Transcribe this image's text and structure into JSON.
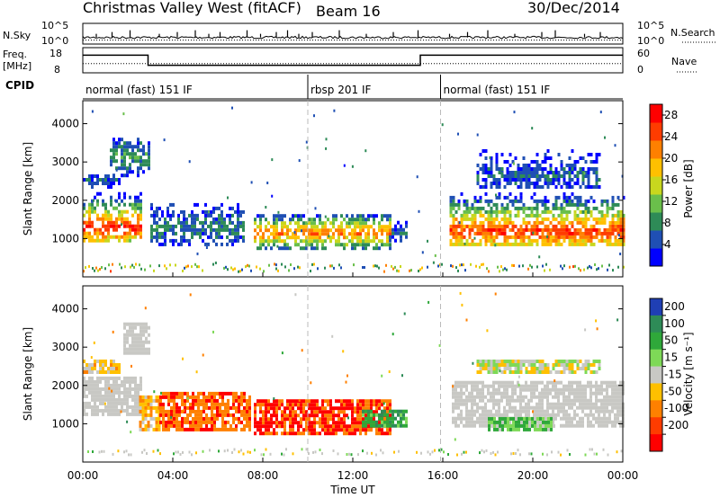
{
  "header": {
    "title": "Christmas Valley West (fitACF)",
    "beam": "Beam 16",
    "date": "30/Dec/2014"
  },
  "nsky_panel": {
    "label": "N.Sky",
    "left_ticks": [
      "10^5",
      "10^0"
    ],
    "right_label": "N.Search",
    "right_ticks": [
      "10^5",
      "10^0"
    ],
    "baseline_fraction": 0.2,
    "spikes_x_hours": [
      0.6,
      1.3,
      2.1,
      3.4,
      4.2,
      5.0,
      5.6,
      6.1,
      7.3,
      7.9,
      8.6,
      9.1,
      9.6,
      10.2,
      11.4,
      12.6,
      13.8,
      14.9,
      16.3,
      17.1,
      18.0,
      19.2,
      20.4,
      21.0,
      22.3,
      23.0
    ]
  },
  "freq_panel": {
    "label_line1": "Freq.",
    "label_line2": "[MHz]",
    "left_ticks": [
      "18",
      "8"
    ],
    "right_ticks": [
      "60",
      "0"
    ],
    "right_label": "Nave",
    "freq_ylim": [
      8,
      18
    ],
    "freq_steps": [
      {
        "start": 0,
        "end": 2.9,
        "value": 15
      },
      {
        "start": 2.9,
        "end": 15.0,
        "value": 11
      },
      {
        "start": 15.0,
        "end": 24.0,
        "value": 15
      }
    ],
    "nave_level": 22
  },
  "cpid": {
    "label": "CPID",
    "segments": [
      {
        "start": 0,
        "end": 10.0,
        "label": "normal (fast) 151 IF"
      },
      {
        "start": 10.0,
        "end": 15.9,
        "label": "rbsp 201 IF"
      },
      {
        "start": 15.9,
        "end": 24.0,
        "label": "normal (fast) 151 IF"
      }
    ]
  },
  "chart_data": [
    {
      "type": "heatmap",
      "name": "power",
      "ylabel": "Slant Range [km]",
      "yticks": [
        1000,
        2000,
        3000,
        4000
      ],
      "ylim": [
        0,
        4600
      ],
      "xlim": [
        0,
        24
      ],
      "colorbar_label": "Power [dB]",
      "colorbar_ticks": [
        4,
        8,
        12,
        16,
        20,
        24,
        28
      ],
      "colorbar_range": [
        0,
        30
      ],
      "colorscale": [
        "#0000ff",
        "#1f4fb4",
        "#2e8b57",
        "#6abf4b",
        "#c8d71e",
        "#ffc000",
        "#ff8000",
        "#ff3c00",
        "#ff0000"
      ],
      "regions": [
        {
          "t0": 0.0,
          "t1": 2.6,
          "r0": 900,
          "r1": 2300,
          "peak": 1250,
          "pmax": 27,
          "decay": -0.05
        },
        {
          "t0": 1.2,
          "t1": 2.9,
          "r0": 2600,
          "r1": 3600,
          "peak": 3100,
          "pmax": 10,
          "decay": 0
        },
        {
          "t0": 0.0,
          "t1": 1.6,
          "r0": 2300,
          "r1": 2600,
          "peak": 2450,
          "pmax": 6,
          "decay": 0
        },
        {
          "t0": 3.0,
          "t1": 7.2,
          "r0": 800,
          "r1": 1900,
          "peak": 1250,
          "pmax": 8,
          "decay": -0.02
        },
        {
          "t0": 7.6,
          "t1": 13.6,
          "r0": 700,
          "r1": 1600,
          "peak": 1100,
          "pmax": 23,
          "decay": 0.0
        },
        {
          "t0": 13.6,
          "t1": 14.4,
          "r0": 900,
          "r1": 1400,
          "peak": 1100,
          "pmax": 8,
          "decay": 0
        },
        {
          "t0": 16.3,
          "t1": 24.0,
          "r0": 800,
          "r1": 2300,
          "peak": 1150,
          "pmax": 26,
          "decay": 0.0
        },
        {
          "t0": 17.5,
          "t1": 23.0,
          "r0": 2300,
          "r1": 3300,
          "peak": 2600,
          "pmax": 6,
          "decay": 0
        }
      ],
      "ground_scatter_band": [
        100,
        300
      ]
    },
    {
      "type": "heatmap",
      "name": "velocity",
      "ylabel": "Slant Range [km]",
      "yticks": [
        1000,
        2000,
        3000,
        4000
      ],
      "ylim": [
        0,
        4600
      ],
      "xlim": [
        0,
        24
      ],
      "colorbar_label": "Velocity [m s⁻¹]",
      "colorbar_ticks": [
        200,
        100,
        50,
        15,
        -15,
        -50,
        -100,
        -200
      ],
      "colorbar_colors": [
        "#1f3fb4",
        "#2e8b57",
        "#2fa83a",
        "#7ed957",
        "#c8c8c4",
        "#ffc000",
        "#ff8000",
        "#ff3c00",
        "#ff0000"
      ],
      "regions": [
        {
          "t0": 0.0,
          "t1": 2.6,
          "r0": 1200,
          "r1": 2200,
          "v": 0,
          "gs": true
        },
        {
          "t0": 0.0,
          "t1": 1.6,
          "r0": 2300,
          "r1": 2600,
          "v": -40,
          "gs": false
        },
        {
          "t0": 1.8,
          "t1": 3.0,
          "r0": 2800,
          "r1": 3600,
          "v": 0,
          "gs": true
        },
        {
          "t0": 2.5,
          "t1": 3.4,
          "r0": 800,
          "r1": 1700,
          "v": -60,
          "gs": false
        },
        {
          "t0": 3.4,
          "t1": 7.4,
          "r0": 800,
          "r1": 1800,
          "v": -140,
          "gs": false
        },
        {
          "t0": 7.6,
          "t1": 13.6,
          "r0": 700,
          "r1": 1600,
          "v": -160,
          "gs": false
        },
        {
          "t0": 12.4,
          "t1": 14.4,
          "r0": 900,
          "r1": 1300,
          "v": 60,
          "gs": false
        },
        {
          "t0": 16.4,
          "t1": 24.0,
          "r0": 900,
          "r1": 2100,
          "v": 0,
          "gs": true
        },
        {
          "t0": 18.0,
          "t1": 21.0,
          "r0": 800,
          "r1": 1100,
          "v": 30,
          "gs": false
        },
        {
          "t0": 17.5,
          "t1": 23.0,
          "r0": 2300,
          "r1": 2600,
          "v": -15,
          "gs": false
        }
      ]
    }
  ],
  "x_axis": {
    "ticks": [
      "00:00",
      "04:00",
      "08:00",
      "12:00",
      "16:00",
      "20:00",
      "00:00"
    ],
    "label": "Time UT"
  }
}
